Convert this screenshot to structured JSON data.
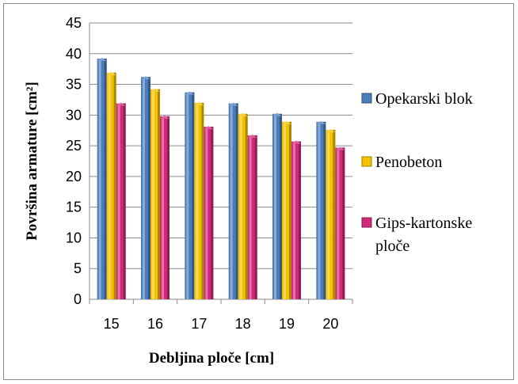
{
  "chart_data": {
    "type": "bar",
    "categories": [
      "15",
      "16",
      "17",
      "18",
      "19",
      "20"
    ],
    "series": [
      {
        "name": "Opekarski blok",
        "values": [
          39.2,
          36.2,
          33.7,
          31.9,
          30.2,
          28.9
        ],
        "color": "#4a7ebb"
      },
      {
        "name": "Penobeton",
        "values": [
          36.9,
          34.2,
          32.0,
          30.2,
          28.9,
          27.6
        ],
        "color": "#f2c200"
      },
      {
        "name": "Gips-kartonske ploče",
        "values": [
          31.9,
          29.8,
          28.1,
          26.7,
          25.7,
          24.7
        ],
        "color": "#d0297a"
      }
    ],
    "legend_lines": [
      [
        "Opekarski blok"
      ],
      [
        "Penobeton"
      ],
      [
        "Gips-kartonske",
        "ploče"
      ]
    ],
    "xlabel": "Debljina ploče [cm]",
    "ylabel": "Površina armature [cm²]",
    "ylim": [
      0,
      45
    ],
    "yticks": [
      "0",
      "5",
      "10",
      "15",
      "20",
      "25",
      "30",
      "35",
      "40",
      "45"
    ],
    "grid": true,
    "legend_position": "right"
  }
}
